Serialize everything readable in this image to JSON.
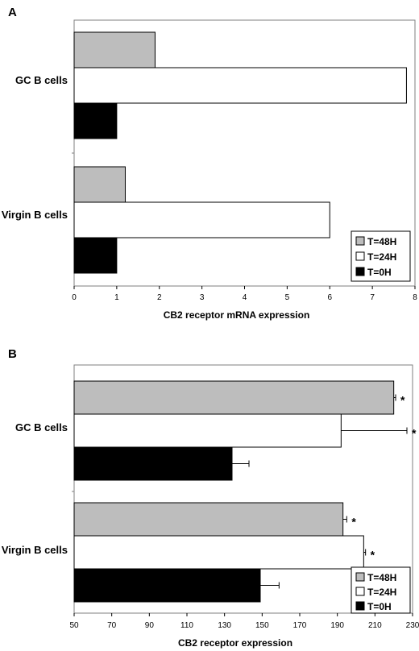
{
  "chart_data": [
    {
      "type": "bar",
      "orientation": "horizontal",
      "panel_label": "A",
      "categories": [
        "GC B cells",
        "Virgin B cells"
      ],
      "series": [
        {
          "name": "T=48H",
          "values": [
            1.9,
            1.2
          ],
          "color": "#bdbdbd"
        },
        {
          "name": "T=24H",
          "values": [
            7.8,
            6.0
          ],
          "color": "#ffffff"
        },
        {
          "name": "T=0H",
          "values": [
            1.0,
            1.0
          ],
          "color": "#000000"
        }
      ],
      "xlabel": "CB2 receptor mRNA expression",
      "xlim": [
        0,
        8
      ],
      "xticks": [
        0,
        1,
        2,
        3,
        4,
        5,
        6,
        7,
        8
      ],
      "legend": "bottom-right",
      "grid": false
    },
    {
      "type": "bar",
      "orientation": "horizontal",
      "panel_label": "B",
      "categories": [
        "GC B cells",
        "Virgin B cells"
      ],
      "series": [
        {
          "name": "T=48H",
          "values": [
            220,
            193
          ],
          "errors": [
            1,
            2
          ],
          "significant": [
            "*",
            "*"
          ],
          "color": "#bdbdbd"
        },
        {
          "name": "T=24H",
          "values": [
            192,
            204
          ],
          "errors": [
            35,
            1
          ],
          "significant": [
            "*",
            "*"
          ],
          "color": "#ffffff"
        },
        {
          "name": "T=0H",
          "values": [
            134,
            149
          ],
          "errors": [
            9,
            10
          ],
          "significant": [
            "",
            ""
          ],
          "color": "#000000"
        }
      ],
      "xlabel": "CB2 receptor expression",
      "xlim": [
        50,
        230
      ],
      "xticks": [
        50,
        70,
        90,
        110,
        130,
        150,
        170,
        190,
        210,
        230
      ],
      "legend": "bottom-right",
      "grid": false
    }
  ]
}
